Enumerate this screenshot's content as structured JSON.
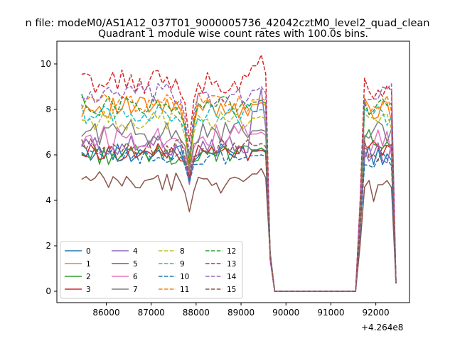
{
  "figure": {
    "suptitle": "n file: modeM0/AS1A12_037T01_9000005736_42042cztM0_level2_quad_clean",
    "offset_label": "+4.264e8"
  },
  "chart_data": {
    "type": "line",
    "title": "Quadrant 1 module wise count rates with 100.0s bins.",
    "xlabel": "",
    "ylabel": "",
    "xlim": [
      84900,
      92750
    ],
    "ylim": [
      -0.5,
      11.0
    ],
    "x_offset": 426400000,
    "xticks": [
      86000,
      87000,
      88000,
      89000,
      90000,
      91000,
      92000
    ],
    "yticks": [
      0,
      2,
      4,
      6,
      8,
      10
    ],
    "grid": false,
    "legend": {
      "placement": "lower-left",
      "columns": 4
    },
    "x_segment_1": {
      "start": 85450,
      "step": 100,
      "count": 43
    },
    "flat_zero": {
      "from": 89750,
      "to": 91550
    },
    "x_segment_2": {
      "start": 91550,
      "step": 100,
      "count": 10
    },
    "series": [
      {
        "name": "0",
        "color": "#1f77b4",
        "dash": "solid",
        "level": 6.1,
        "amp": 0.18,
        "dip": 4.9,
        "peak": 6.3,
        "seg2": 6.0
      },
      {
        "name": "1",
        "color": "#ff7f0e",
        "dash": "solid",
        "level": 8.1,
        "amp": 0.22,
        "dip": 5.4,
        "peak": 8.3,
        "seg2": 8.0
      },
      {
        "name": "2",
        "color": "#2ca02c",
        "dash": "solid",
        "level": 6.0,
        "amp": 0.2,
        "dip": 5.0,
        "peak": 6.3,
        "seg2": 6.7
      },
      {
        "name": "3",
        "color": "#d62728",
        "dash": "solid",
        "level": 6.1,
        "amp": 0.18,
        "dip": 5.0,
        "peak": 6.2,
        "seg2": 6.2
      },
      {
        "name": "4",
        "color": "#9467bd",
        "dash": "solid",
        "level": 6.4,
        "amp": 0.2,
        "dip": 4.7,
        "peak": 8.9,
        "seg2": 6.1
      },
      {
        "name": "5",
        "color": "#8c564b",
        "dash": "solid",
        "level": 4.8,
        "amp": 0.22,
        "dip": 3.5,
        "peak": 5.4,
        "seg2": 4.5
      },
      {
        "name": "6",
        "color": "#e377c2",
        "dash": "solid",
        "level": 6.8,
        "amp": 0.25,
        "dip": 5.2,
        "peak": 7.0,
        "seg2": 6.5
      },
      {
        "name": "7",
        "color": "#7f7f7f",
        "dash": "solid",
        "level": 7.0,
        "amp": 0.25,
        "dip": 5.3,
        "peak": 7.1,
        "seg2": 7.0
      },
      {
        "name": "8",
        "color": "#bcbd22",
        "dash": "dashed",
        "level": 7.5,
        "amp": 0.2,
        "dip": 5.6,
        "peak": 7.7,
        "seg2": 7.4
      },
      {
        "name": "9",
        "color": "#17becf",
        "dash": "dashed",
        "level": 7.8,
        "amp": 0.2,
        "dip": 5.8,
        "peak": 8.0,
        "seg2": 7.7
      },
      {
        "name": "10",
        "color": "#1f77b4",
        "dash": "dashed",
        "level": 5.9,
        "amp": 0.15,
        "dip": 4.8,
        "peak": 6.0,
        "seg2": 5.8
      },
      {
        "name": "11",
        "color": "#ff7f0e",
        "dash": "dashed",
        "level": 8.3,
        "amp": 0.2,
        "dip": 5.5,
        "peak": 8.5,
        "seg2": 8.2
      },
      {
        "name": "12",
        "color": "#2ca02c",
        "dash": "dashed",
        "level": 8.2,
        "amp": 0.22,
        "dip": 5.6,
        "peak": 8.4,
        "seg2": 8.1
      },
      {
        "name": "13",
        "color": "#d62728",
        "dash": "dashed",
        "level": 9.2,
        "amp": 0.25,
        "dip": 6.6,
        "peak": 10.4,
        "seg2": 8.8
      },
      {
        "name": "14",
        "color": "#9467bd",
        "dash": "dashed",
        "level": 8.6,
        "amp": 0.25,
        "dip": 6.0,
        "peak": 9.0,
        "seg2": 8.5
      },
      {
        "name": "15",
        "color": "#8c564b",
        "dash": "dashed",
        "level": 6.3,
        "amp": 0.2,
        "dip": 5.1,
        "peak": 6.5,
        "seg2": 6.2
      }
    ]
  }
}
